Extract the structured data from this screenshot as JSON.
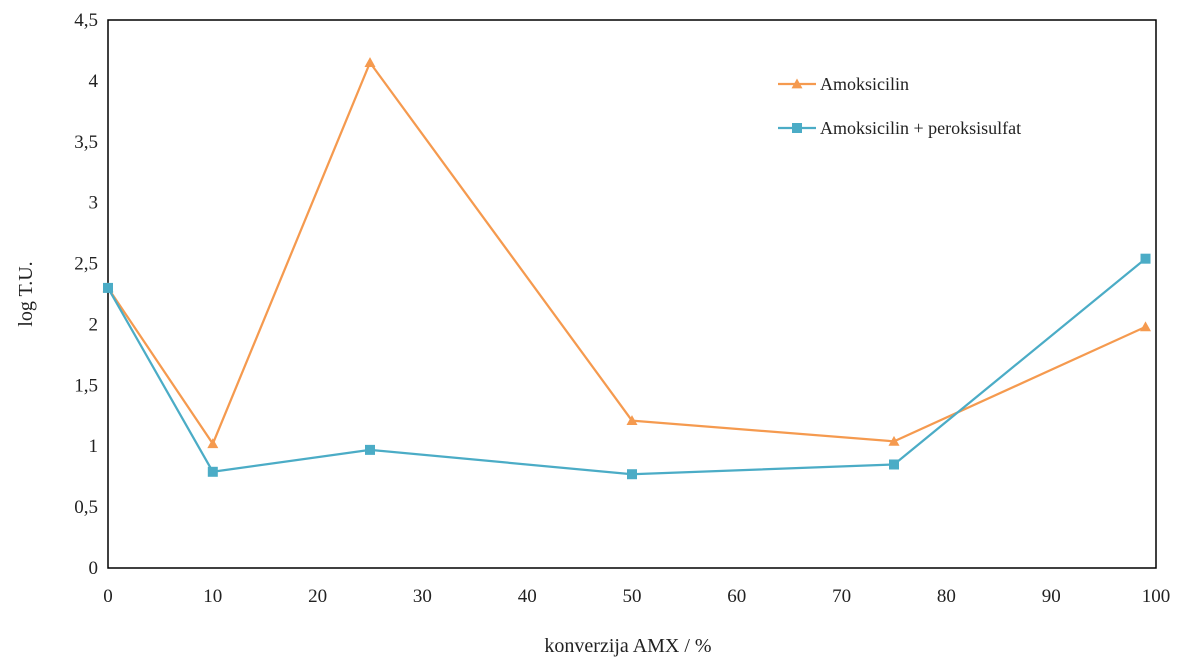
{
  "chart_data": {
    "type": "line",
    "title": "",
    "xlabel": "konverzija AMX / %",
    "ylabel": "log T.U.",
    "xlim": [
      0,
      100
    ],
    "ylim": [
      0,
      4.5
    ],
    "x_ticks": [
      0,
      10,
      20,
      30,
      40,
      50,
      60,
      70,
      80,
      90,
      100
    ],
    "x_tick_labels": [
      "0",
      "10",
      "20",
      "30",
      "40",
      "50",
      "60",
      "70",
      "80",
      "90",
      "100"
    ],
    "y_ticks": [
      0,
      0.5,
      1,
      1.5,
      2,
      2.5,
      3,
      3.5,
      4,
      4.5
    ],
    "y_tick_labels": [
      "0",
      "0,5",
      "1",
      "1,5",
      "2",
      "2,5",
      "3",
      "3,5",
      "4",
      "4,5"
    ],
    "grid": false,
    "legend_position": "top-right",
    "series": [
      {
        "name": "Amoksicilin",
        "color": "#F59A4F",
        "marker": "triangle",
        "x": [
          0,
          10,
          25,
          50,
          75,
          99
        ],
        "y": [
          2.3,
          1.02,
          4.15,
          1.21,
          1.04,
          1.98
        ]
      },
      {
        "name": "Amoksicilin + peroksisulfat",
        "color": "#4BACC6",
        "marker": "square",
        "x": [
          0,
          10,
          25,
          50,
          75,
          99
        ],
        "y": [
          2.3,
          0.79,
          0.97,
          0.77,
          0.85,
          2.54
        ]
      }
    ]
  }
}
